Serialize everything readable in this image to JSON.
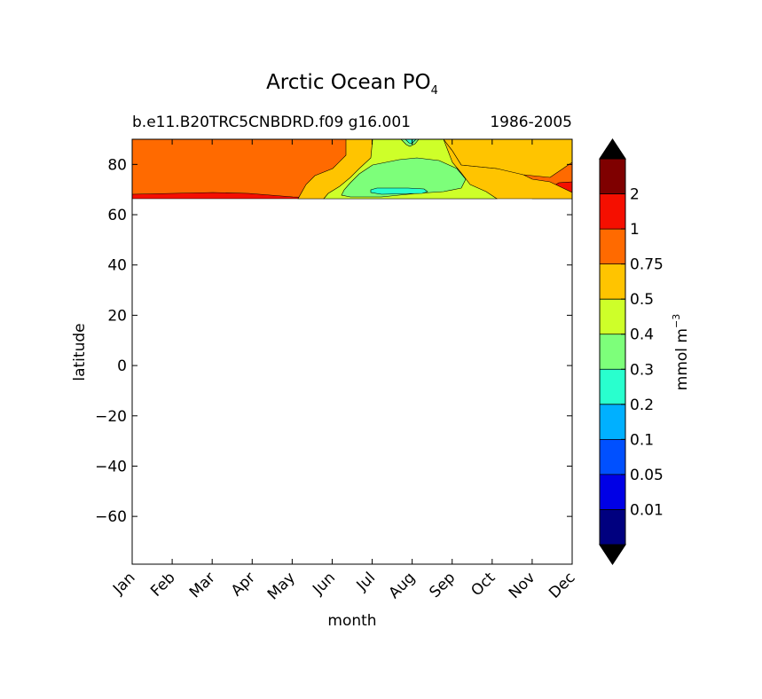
{
  "chart_data": {
    "type": "filled-contour",
    "title": "Arctic Ocean PO",
    "title_subscript": "4",
    "subtitle_left": "b.e11.B20TRC5CNBDRD.f09 g16.001",
    "subtitle_right": "1986-2005",
    "xlabel": "month",
    "ylabel": "latitude",
    "x_categories": [
      "Jan",
      "Feb",
      "Mar",
      "Apr",
      "May",
      "Jun",
      "Jul",
      "Aug",
      "Sep",
      "Oct",
      "Nov",
      "Dec"
    ],
    "y_ticks": [
      80,
      60,
      40,
      20,
      0,
      -20,
      -40,
      -60
    ],
    "ylim": [
      -79,
      90
    ],
    "data_lat_range": [
      66.5,
      90
    ],
    "colorbar": {
      "label": "mmol m",
      "label_superscript": "−3",
      "extend": "both",
      "tick_labels": [
        "0.01",
        "0.05",
        "0.1",
        "0.2",
        "0.3",
        "0.4",
        "0.5",
        "0.75",
        "1",
        "2"
      ],
      "colors": [
        "#00007f",
        "#0000e6",
        "#0050ff",
        "#00b0ff",
        "#29ffce",
        "#7dff7a",
        "#ceff29",
        "#ffc400",
        "#ff6a00",
        "#f50f00",
        "#7f0000",
        "#000000"
      ],
      "under_color": "#000000",
      "over_color": "#000000"
    },
    "regions": [
      {
        "level_range": "0.75-1",
        "color": "#ff6a00",
        "note": "Jan-May and Oct-Dec background"
      },
      {
        "level_range": "1-2",
        "color": "#f50f00",
        "note": "thin band near 67N Jan-May"
      },
      {
        "level_range": "0.5-0.75",
        "color": "#ffc400",
        "note": "Jun and Sep-Dec"
      },
      {
        "level_range": "0.4-0.5",
        "color": "#ceff29",
        "note": "Jun-Sep"
      },
      {
        "level_range": "0.3-0.4",
        "color": "#7dff7a",
        "note": "Jul-Aug core"
      },
      {
        "level_range": "0.2-0.3",
        "color": "#29ffce",
        "note": "Aug small patches"
      }
    ],
    "grid": false,
    "legend": "colorbar-right"
  }
}
